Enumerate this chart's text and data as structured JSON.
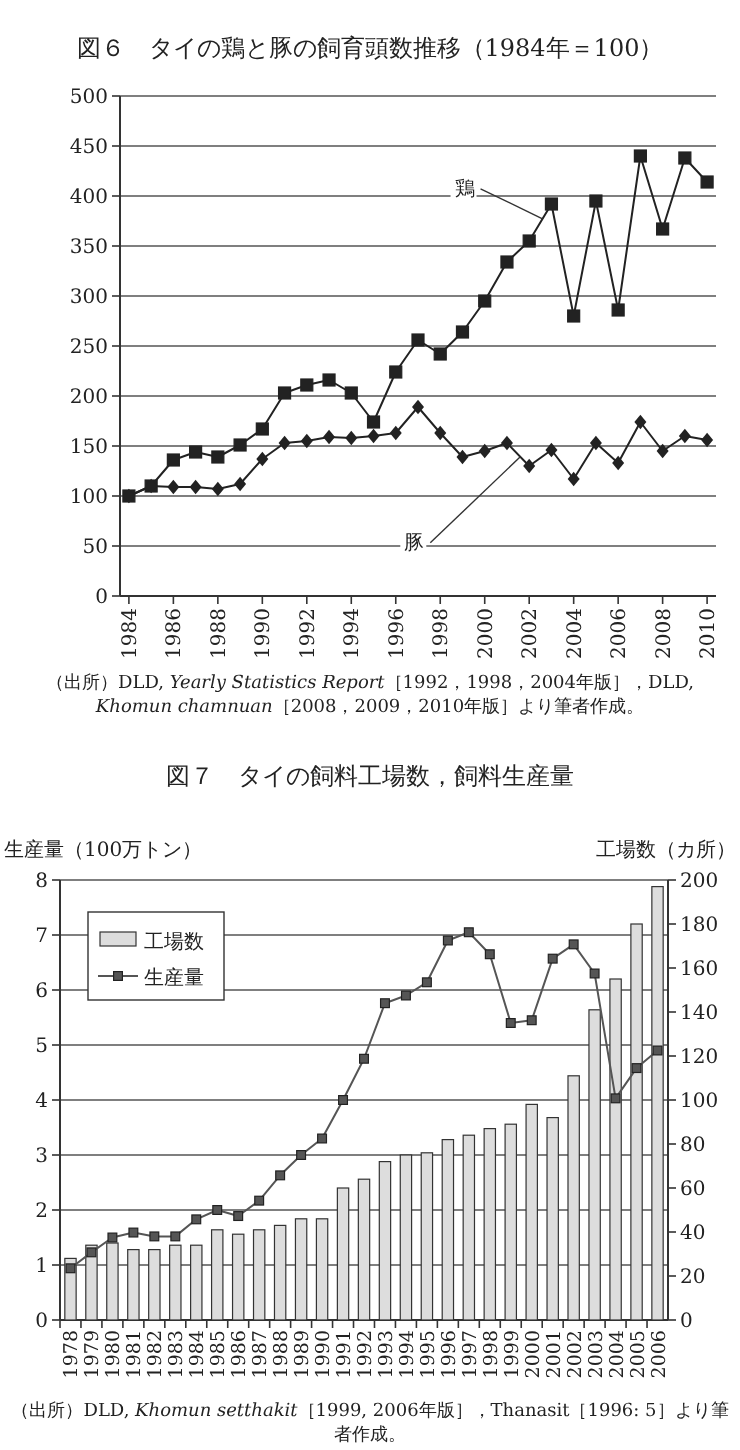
{
  "chart_data": [
    {
      "type": "line",
      "title": "図６　タイの鶏と豚の飼育頭数推移（1984年＝100）",
      "x": [
        1984,
        1985,
        1986,
        1987,
        1988,
        1989,
        1990,
        1991,
        1992,
        1993,
        1994,
        1995,
        1996,
        1997,
        1998,
        1999,
        2000,
        2001,
        2002,
        2003,
        2004,
        2005,
        2006,
        2007,
        2008,
        2009,
        2010
      ],
      "xlim": [
        1983.6,
        2010.4
      ],
      "xticks": [
        1984,
        1986,
        1988,
        1990,
        1992,
        1994,
        1996,
        1998,
        2000,
        2002,
        2004,
        2006,
        2008,
        2010
      ],
      "ylim": [
        0,
        500
      ],
      "yticks": [
        0,
        50,
        100,
        150,
        200,
        250,
        300,
        350,
        400,
        450,
        500
      ],
      "grid": "y",
      "legend": false,
      "series": [
        {
          "name": "鶏",
          "color": "#222222",
          "marker": "square",
          "values": [
            100,
            110,
            136,
            144,
            139,
            151,
            167,
            203,
            211,
            216,
            203,
            174,
            224,
            256,
            242,
            264,
            295,
            334,
            355,
            392,
            280,
            395,
            286,
            440,
            367,
            438,
            414
          ]
        },
        {
          "name": "豚",
          "color": "#222222",
          "marker": "diamond",
          "values": [
            100,
            110,
            109,
            109,
            107,
            112,
            137,
            153,
            155,
            159,
            158,
            160,
            163,
            189,
            163,
            139,
            145,
            153,
            130,
            146,
            117,
            153,
            133,
            174,
            145,
            160,
            156
          ]
        }
      ],
      "annotations": [
        "（出所）DLD, *Yearly Statistics Report*［1992，1998，2004年版］，DLD, *Khomun chamnuan*［2008，2009，2010年版］より筆者作成。"
      ]
    },
    {
      "type": "bar",
      "title": "図７　タイの飼料工場数，飼料生産量",
      "categories": [
        "1978",
        "1979",
        "1980",
        "1981",
        "1982",
        "1983",
        "1984",
        "1985",
        "1986",
        "1987",
        "1988",
        "1989",
        "1990",
        "1991",
        "1992",
        "1993",
        "1994",
        "1995",
        "1996",
        "1997",
        "1998",
        "1999",
        "2000",
        "2001",
        "2002",
        "2003",
        "2004",
        "2005",
        "2006"
      ],
      "ylabel": "生産量（100万トン）",
      "y2label": "工場数（カ所）",
      "ylim": [
        0,
        8
      ],
      "yticks": [
        0,
        1,
        2,
        3,
        4,
        5,
        6,
        7,
        8
      ],
      "y2lim": [
        0,
        200
      ],
      "y2ticks": [
        0,
        20,
        40,
        60,
        80,
        100,
        120,
        140,
        160,
        180,
        200
      ],
      "grid": "y",
      "legend": "top left",
      "series": [
        {
          "name": "工場数",
          "type": "bar",
          "axis": "y2",
          "color": "#dddddd",
          "values": [
            28,
            34,
            35,
            32,
            32,
            34,
            34,
            41,
            39,
            41,
            43,
            46,
            46,
            60,
            64,
            72,
            75,
            76,
            82,
            84,
            87,
            89,
            98,
            92,
            111,
            141,
            155,
            180,
            197
          ]
        },
        {
          "name": "生産量",
          "type": "line",
          "axis": "y",
          "color": "#555555",
          "marker": "square",
          "values": [
            0.94,
            1.23,
            1.5,
            1.59,
            1.52,
            1.52,
            1.83,
            2.0,
            1.89,
            2.17,
            2.63,
            3.0,
            3.3,
            4.0,
            4.75,
            5.76,
            5.9,
            6.14,
            6.9,
            7.05,
            6.65,
            5.4,
            5.45,
            6.57,
            6.83,
            6.3,
            4.03,
            4.58,
            4.9
          ]
        }
      ],
      "annotations": [
        "（出所）DLD, *Khomun setthakit*［1999, 2006年版］，Thanasit［1996: 5］より筆者作成。"
      ]
    }
  ]
}
